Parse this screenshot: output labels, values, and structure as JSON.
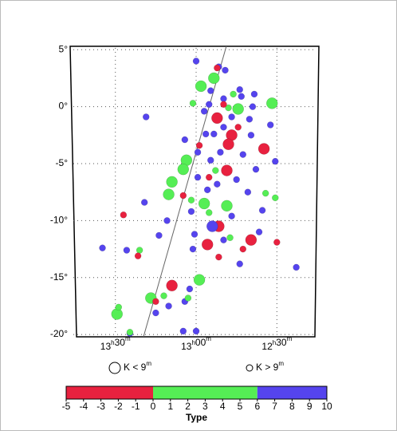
{
  "chart_data": {
    "type": "scatter",
    "xlim": [
      13.78,
      12.24
    ],
    "ylim": [
      -20.2,
      5.3
    ],
    "xticks": [
      {
        "value": 13.5,
        "label": "13h30m"
      },
      {
        "value": 13.0,
        "label": "13h00m"
      },
      {
        "value": 12.5,
        "label": "12h30m"
      }
    ],
    "yticks": [
      {
        "value": 5,
        "label": "5°"
      },
      {
        "value": 0,
        "label": "0°"
      },
      {
        "value": -5,
        "label": "-5°"
      },
      {
        "value": -10,
        "label": "-10°"
      },
      {
        "value": -15,
        "label": "-15°"
      },
      {
        "value": -20,
        "label": "-20°"
      }
    ],
    "grid": true,
    "line": {
      "x": [
        13.326,
        12.813
      ],
      "y": [
        -20.2,
        5.3
      ],
      "color": "#666666"
    },
    "series": [
      {
        "name": "K < 9m",
        "x": [
          12.89,
          12.97,
          12.53,
          12.74,
          13.06,
          13.08,
          13.15,
          13.17,
          12.95,
          12.81,
          12.98,
          13.28,
          13.49,
          12.87,
          12.78,
          12.8,
          12.58,
          12.81,
          12.86,
          12.93,
          13.15,
          12.66,
          12.9
        ],
        "values": [
          2.5,
          1.8,
          0.3,
          -0.2,
          -4.7,
          -5.5,
          -6.6,
          -7.7,
          -8.5,
          -8.7,
          -15.2,
          -16.8,
          -18.2,
          -1.0,
          -2.5,
          -3.3,
          -3.7,
          -5.6,
          -10.5,
          -12.1,
          -15.7,
          -11.7,
          -10.5
        ],
        "types": [
          3,
          3,
          3,
          3,
          3,
          3,
          3,
          3,
          3,
          3,
          3,
          3,
          3,
          -2,
          -2,
          -2,
          -2,
          -2,
          -2,
          -2,
          -2,
          -2,
          8
        ]
      },
      {
        "name": "K > 9m",
        "x": [
          13.0,
          12.86,
          12.91,
          12.82,
          12.73,
          12.64,
          12.72,
          12.83,
          12.92,
          12.65,
          12.67,
          12.78,
          12.83,
          12.54,
          12.66,
          12.94,
          13.07,
          12.99,
          12.85,
          12.91,
          12.71,
          12.63,
          12.51,
          13.31,
          12.99,
          12.87,
          12.75,
          12.93,
          12.68,
          13.03,
          12.78,
          12.59,
          12.61,
          13.18,
          13.23,
          13.01,
          12.83,
          13.02,
          13.58,
          13.43,
          12.38,
          12.73,
          13.07,
          13.04,
          13.17,
          13.25,
          13.41,
          13.0,
          13.08,
          13.32,
          12.89,
          12.95,
          13.02,
          12.77,
          12.8,
          12.57,
          12.51,
          13.03,
          12.92,
          12.79,
          13.35,
          13.48,
          13.05,
          13.41,
          13.2,
          12.88,
          12.87,
          12.83,
          13.45,
          12.98,
          13.08,
          13.36,
          12.74,
          12.71,
          12.5,
          12.92,
          13.25,
          12.86
        ],
        "values": [
          4.0,
          3.5,
          1.4,
          3.2,
          1.5,
          1.1,
          0.9,
          0.7,
          0.2,
          0.0,
          -1.1,
          -0.9,
          -1.8,
          -1.6,
          -2.5,
          -2.4,
          -2.9,
          -4.0,
          -4.0,
          -4.7,
          -4.2,
          -5.5,
          -4.8,
          -0.9,
          -6.2,
          -6.8,
          -6.4,
          -7.3,
          -7.5,
          -9.2,
          -9.6,
          -9.1,
          -11.0,
          -10.0,
          -11.3,
          -11.2,
          -11.7,
          -12.5,
          -12.4,
          -12.6,
          -14.1,
          -13.8,
          -17.1,
          -16.0,
          -17.5,
          -18.1,
          -19.9,
          -19.7,
          -19.7,
          -8.4,
          -2.4,
          -0.4,
          0.3,
          1.1,
          -0.1,
          -7.6,
          -8.0,
          -8.2,
          -9.3,
          -11.5,
          -12.6,
          -17.6,
          -16.8,
          -19.8,
          -16.6,
          -5.6,
          3.4,
          0.2,
          -9.5,
          -3.4,
          -7.8,
          -13.1,
          -1.8,
          -12.5,
          -11.9,
          -6.2,
          -17.1,
          -13.2
        ],
        "types": [
          8,
          8,
          8,
          8,
          8,
          8,
          8,
          8,
          8,
          8,
          8,
          8,
          8,
          8,
          8,
          8,
          8,
          8,
          8,
          8,
          8,
          8,
          8,
          8,
          8,
          8,
          8,
          8,
          8,
          8,
          8,
          8,
          8,
          8,
          8,
          8,
          8,
          8,
          8,
          8,
          8,
          8,
          8,
          8,
          8,
          8,
          8,
          8,
          8,
          8,
          8,
          8,
          3,
          3,
          3,
          3,
          3,
          3,
          3,
          3,
          3,
          3,
          3,
          3,
          3,
          3,
          -2,
          -2,
          -2,
          -2,
          -2,
          -2,
          -2,
          -2,
          -2,
          -2,
          -2,
          -2
        ]
      }
    ],
    "colorbar": {
      "label": "Type",
      "lim": [
        -5,
        10
      ],
      "ticks": [
        -5,
        -4,
        -3,
        -2,
        -1,
        0,
        1,
        2,
        3,
        4,
        5,
        6,
        7,
        8,
        9,
        10
      ],
      "segments": [
        {
          "from": -5,
          "to": 0,
          "color": "#e8213f"
        },
        {
          "from": 0,
          "to": 6,
          "color": "#55ee55"
        },
        {
          "from": 6,
          "to": 10,
          "color": "#5544ee"
        }
      ]
    }
  }
}
